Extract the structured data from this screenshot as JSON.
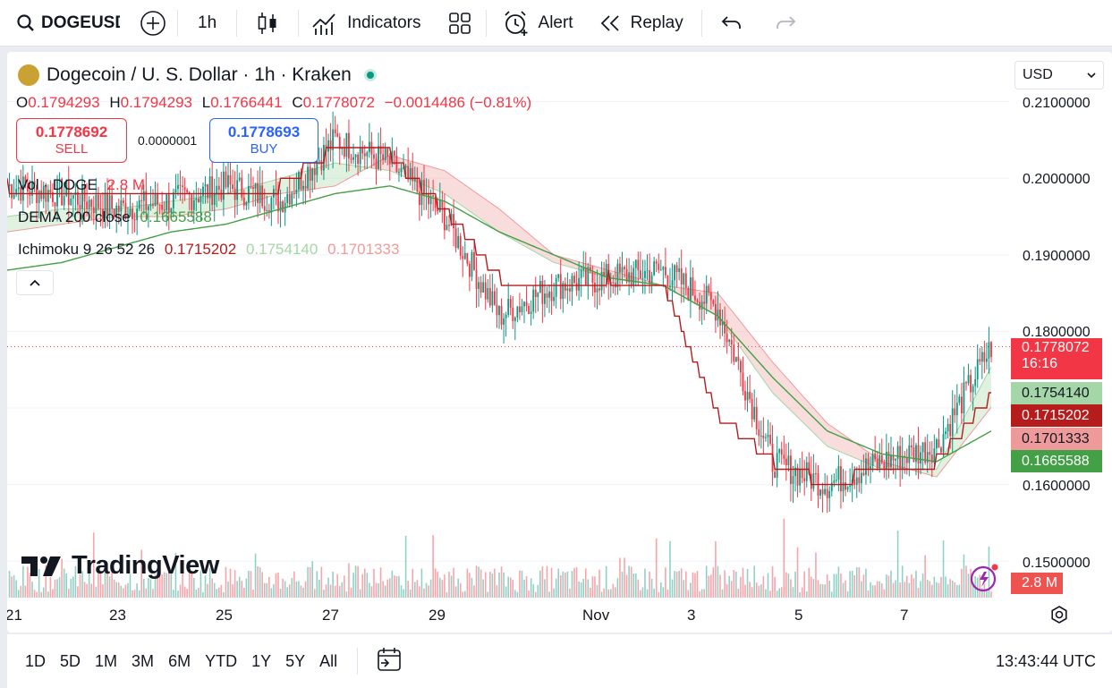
{
  "toolbar": {
    "symbol": "DOGEUSD",
    "interval": "1h",
    "indicators_label": "Indicators",
    "alert_label": "Alert",
    "replay_label": "Replay"
  },
  "legend": {
    "title": "Dogecoin / U. S. Dollar · 1h · Kraken",
    "o_label": "O",
    "o_value": "0.1794293",
    "h_label": "H",
    "h_value": "0.1794293",
    "l_label": "L",
    "l_value": "0.1766441",
    "c_label": "C",
    "c_value": "0.1778072",
    "change": "−0.0014486 (−0.81%)",
    "sell_price": "0.1778692",
    "sell_label": "SELL",
    "spread": "0.0000001",
    "buy_price": "0.1778693",
    "buy_label": "BUY",
    "volume_name": "Vol · DOGE",
    "volume_value": "2.8 M",
    "dema_name": "DEMA 200 close",
    "dema_value": "0.1665588",
    "ichimoku_name": "Ichimoku 9 26 52 26",
    "ichimoku_v1": "0.1715202",
    "ichimoku_v2": "0.1754140",
    "ichimoku_v3": "0.1701333"
  },
  "currency": "USD",
  "price_axis": [
    "0.2100000",
    "0.2000000",
    "0.1900000",
    "0.1800000",
    "0.1600000",
    "0.1500000"
  ],
  "price_tags": {
    "last_price": "0.1778072",
    "countdown": "16:16",
    "span_a": "0.1754140",
    "base_line": "0.1715202",
    "span_b": "0.1701333",
    "dema": "0.1665588",
    "volume": "2.8 M"
  },
  "time_axis": [
    "21",
    "23",
    "25",
    "27",
    "29",
    "Nov",
    "3",
    "5",
    "7"
  ],
  "ranges": [
    "1D",
    "5D",
    "1M",
    "3M",
    "6M",
    "YTD",
    "1Y",
    "5Y",
    "All"
  ],
  "clock": "13:43:44 UTC",
  "brand": "TradingView",
  "colors": {
    "up": "#089981",
    "down": "#f23645",
    "accent": "#2962ff",
    "dema": "#43a047",
    "base": "#b71c1c"
  },
  "chart_data": {
    "type": "candlestick",
    "interval": "1h",
    "ylim": [
      0.145,
      0.213
    ],
    "x": [
      "Oct 21",
      "Oct 22",
      "Oct 23",
      "Oct 24",
      "Oct 25",
      "Oct 26",
      "Oct 27",
      "Oct 28",
      "Oct 29",
      "Oct 30",
      "Oct 31",
      "Nov 1",
      "Nov 2",
      "Nov 3",
      "Nov 4",
      "Nov 5",
      "Nov 6",
      "Nov 7",
      "Nov 8"
    ],
    "close": [
      0.199,
      0.198,
      0.196,
      0.197,
      0.199,
      0.197,
      0.205,
      0.202,
      0.195,
      0.182,
      0.186,
      0.187,
      0.188,
      0.183,
      0.163,
      0.16,
      0.163,
      0.165,
      0.178
    ],
    "dema": [
      0.188,
      0.189,
      0.191,
      0.193,
      0.194,
      0.196,
      0.198,
      0.199,
      0.197,
      0.193,
      0.19,
      0.187,
      0.186,
      0.182,
      0.174,
      0.167,
      0.164,
      0.163,
      0.167
    ],
    "base_line": [
      0.199,
      0.198,
      0.197,
      0.197,
      0.198,
      0.199,
      0.204,
      0.203,
      0.196,
      0.187,
      0.186,
      0.187,
      0.186,
      0.169,
      0.163,
      0.16,
      0.162,
      0.163,
      0.1715
    ],
    "span_a": [
      0.195,
      0.196,
      0.196,
      0.197,
      0.198,
      0.2,
      0.202,
      0.201,
      0.198,
      0.193,
      0.189,
      0.187,
      0.186,
      0.182,
      0.172,
      0.165,
      0.162,
      0.162,
      0.1754
    ],
    "span_b": [
      0.193,
      0.194,
      0.195,
      0.195,
      0.196,
      0.198,
      0.199,
      0.203,
      0.201,
      0.196,
      0.19,
      0.188,
      0.186,
      0.185,
      0.176,
      0.168,
      0.163,
      0.161,
      0.1701
    ]
  }
}
